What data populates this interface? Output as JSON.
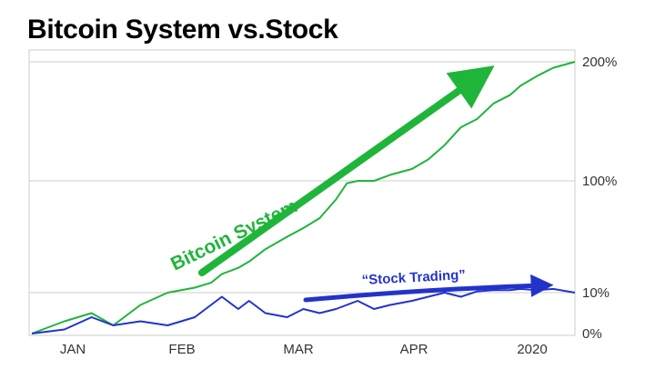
{
  "title": "Bitcoin System vs.Stock",
  "chart_data": {
    "type": "line",
    "title": "Bitcoin System vs.Stock",
    "xlabel": "",
    "ylabel": "",
    "x_ticks": [
      "JAN",
      "FEB",
      "MAR",
      "APR",
      "2020"
    ],
    "y_ticks": [
      "0%",
      "10%",
      "100%",
      "200%"
    ],
    "grid": true,
    "axis_side": "right",
    "annotations": [
      "Bitcoin System",
      "“Stock Trading”"
    ],
    "colors": {
      "bitcoin": "#1fb53a",
      "stock": "#2233cc",
      "grid": "#cccccc"
    },
    "series": [
      {
        "name": "Bitcoin System",
        "x": [
          0,
          0.06,
          0.11,
          0.15,
          0.2,
          0.25,
          0.3,
          0.33,
          0.35,
          0.38,
          0.4,
          0.43,
          0.47,
          0.5,
          0.53,
          0.56,
          0.58,
          0.6,
          0.63,
          0.66,
          0.7,
          0.73,
          0.76,
          0.79,
          0.82,
          0.85,
          0.88,
          0.9,
          0.93,
          0.96,
          1.0
        ],
        "y": [
          0,
          3,
          5,
          2,
          7,
          10,
          14,
          18,
          25,
          30,
          35,
          45,
          55,
          62,
          70,
          85,
          98,
          100,
          100,
          105,
          110,
          118,
          130,
          145,
          152,
          165,
          172,
          180,
          188,
          195,
          200
        ]
      },
      {
        "name": "Stock Trading",
        "x": [
          0,
          0.06,
          0.11,
          0.15,
          0.2,
          0.25,
          0.3,
          0.33,
          0.35,
          0.38,
          0.4,
          0.43,
          0.47,
          0.5,
          0.53,
          0.56,
          0.58,
          0.6,
          0.63,
          0.66,
          0.7,
          0.73,
          0.76,
          0.79,
          0.82,
          0.85,
          0.88,
          0.9,
          0.93,
          0.96,
          1.0
        ],
        "y": [
          0,
          1,
          4,
          2,
          3,
          2,
          4,
          7,
          9,
          6,
          8,
          5,
          4,
          6,
          5,
          6,
          7,
          8,
          6,
          7,
          8,
          9,
          10,
          9,
          11,
          12,
          12,
          13,
          12,
          13,
          10
        ]
      }
    ]
  }
}
